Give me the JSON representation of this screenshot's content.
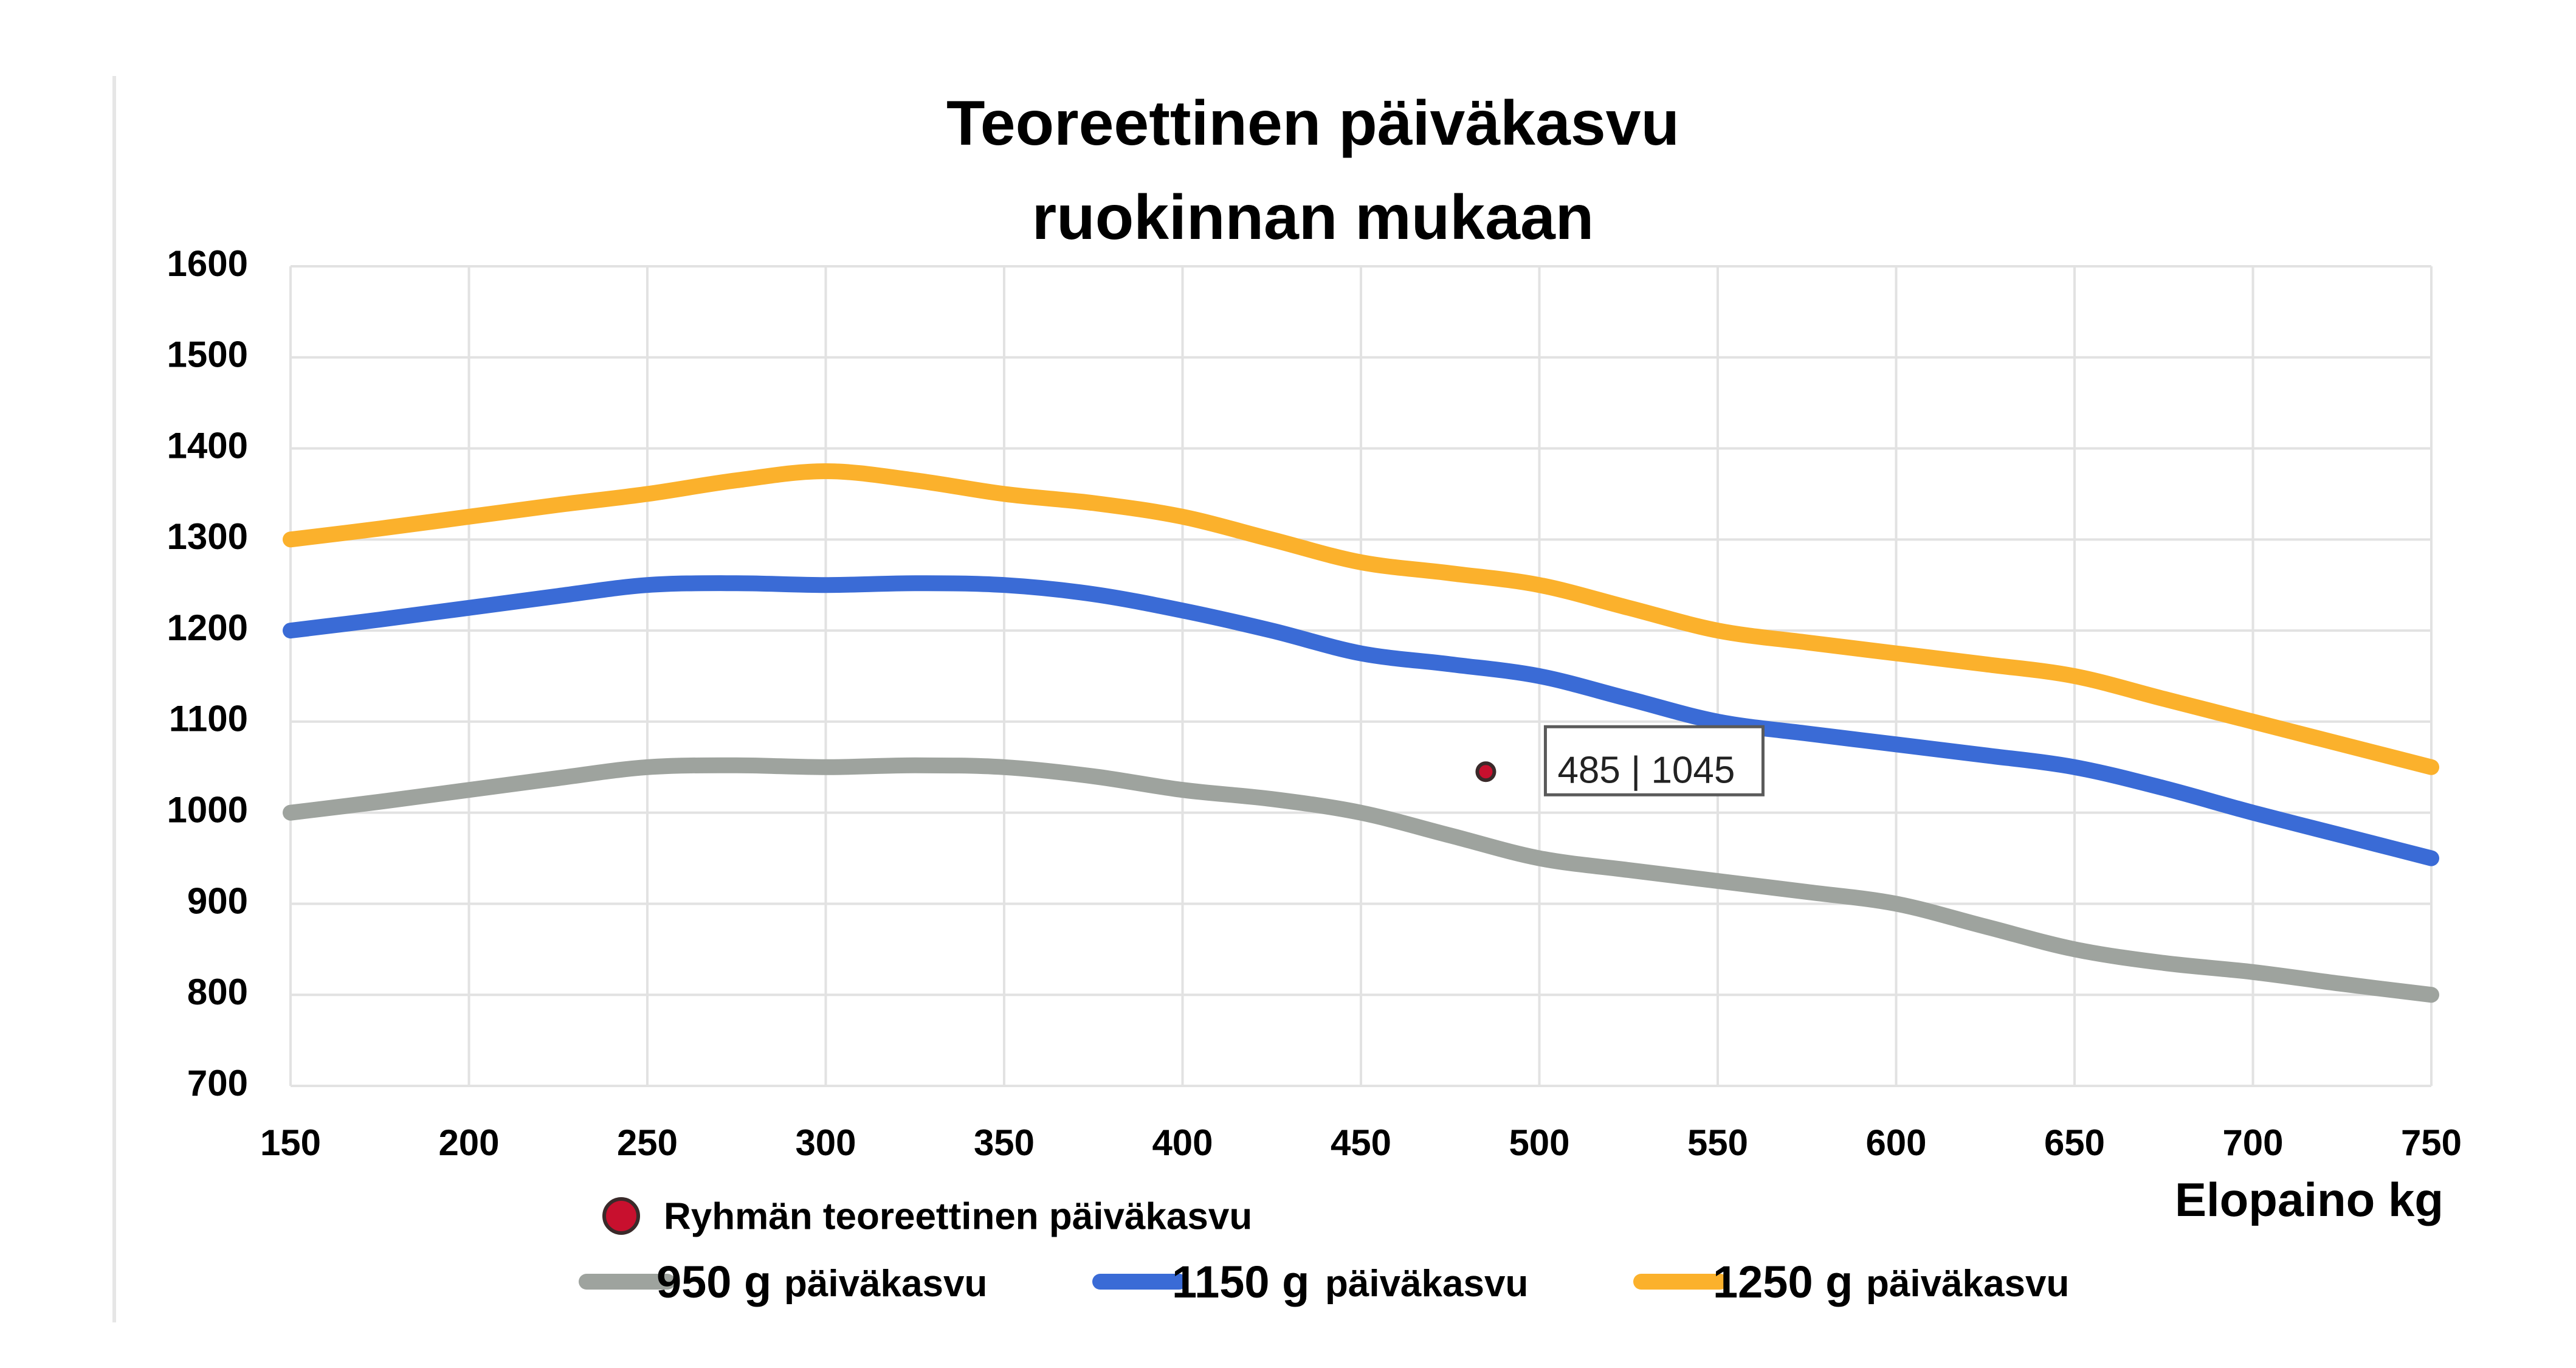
{
  "chart_data": {
    "type": "line",
    "title_lines": [
      "Teoreettinen päiväkasvu",
      "ruokinnan mukaan"
    ],
    "xlabel": "Elopaino kg",
    "ylabel": "",
    "xlim": [
      150,
      750
    ],
    "ylim": [
      700,
      1600
    ],
    "x_ticks": [
      150,
      200,
      250,
      300,
      350,
      400,
      450,
      500,
      550,
      600,
      650,
      700,
      750
    ],
    "y_ticks": [
      700,
      800,
      900,
      1000,
      1100,
      1200,
      1300,
      1400,
      1500,
      1600
    ],
    "grid": true,
    "legend_position": "bottom",
    "x": [
      150,
      175,
      200,
      225,
      250,
      275,
      300,
      325,
      350,
      375,
      400,
      425,
      450,
      475,
      500,
      525,
      550,
      575,
      600,
      625,
      650,
      675,
      700,
      725,
      750
    ],
    "series": [
      {
        "name_value": "950 g",
        "name_suffix": "päiväkasvu",
        "color": "#9ea39e",
        "values": [
          1000,
          1012,
          1025,
          1038,
          1050,
          1052,
          1050,
          1052,
          1050,
          1040,
          1025,
          1015,
          1000,
          975,
          950,
          937,
          925,
          913,
          900,
          875,
          850,
          835,
          825,
          812,
          800
        ]
      },
      {
        "name_value": "1150 g",
        "name_suffix": "päiväkasvu",
        "color": "#3a6bd6",
        "values": [
          1200,
          1212,
          1225,
          1238,
          1250,
          1252,
          1250,
          1252,
          1250,
          1240,
          1222,
          1200,
          1175,
          1163,
          1150,
          1125,
          1100,
          1087,
          1075,
          1063,
          1050,
          1027,
          1000,
          975,
          950
        ]
      },
      {
        "name_value": "1250 g",
        "name_suffix": "päiväkasvu",
        "color": "#fbb12c",
        "values": [
          1300,
          1312,
          1325,
          1338,
          1350,
          1365,
          1375,
          1365,
          1350,
          1340,
          1325,
          1300,
          1275,
          1263,
          1250,
          1225,
          1200,
          1187,
          1175,
          1163,
          1150,
          1125,
          1100,
          1075,
          1050
        ]
      }
    ],
    "marker": {
      "name": "Ryhmän teoreettinen päiväkasvu",
      "x": 485,
      "y": 1045,
      "label": "485 | 1045",
      "color": "#c8102e"
    }
  }
}
